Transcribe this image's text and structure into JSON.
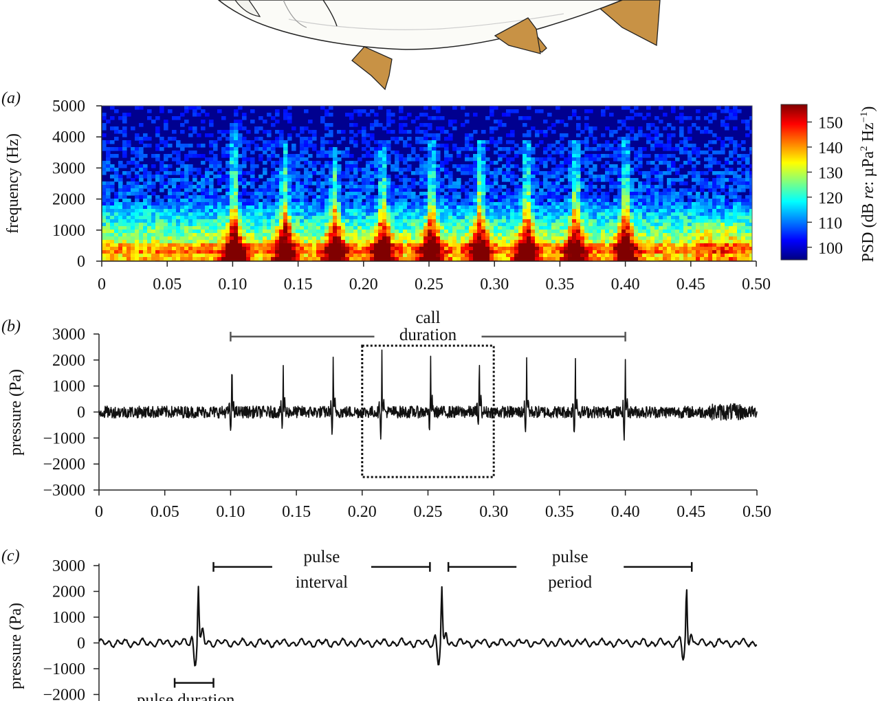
{
  "chart_data": [
    {
      "panel": "a",
      "type": "heatmap",
      "panel_label": "(a)",
      "ylabel": "frequency (Hz)",
      "xlim": [
        0,
        0.5
      ],
      "ylim": [
        0,
        5000
      ],
      "x_ticks": [
        "0",
        "0.05",
        "0.10",
        "0.15",
        "0.20",
        "0.25",
        "0.30",
        "0.35",
        "0.40",
        "0.45",
        "0.50"
      ],
      "y_ticks": [
        "0",
        "1000",
        "2000",
        "3000",
        "4000",
        "5000"
      ],
      "x_tick_values": [
        0,
        0.05,
        0.1,
        0.15,
        0.2,
        0.25,
        0.3,
        0.35,
        0.4,
        0.45,
        0.5
      ],
      "y_tick_values": [
        0,
        1000,
        2000,
        3000,
        4000,
        5000
      ],
      "pulse_times": [
        0.101,
        0.14,
        0.178,
        0.215,
        0.252,
        0.289,
        0.325,
        0.362,
        0.4
      ],
      "pulse_top_freqs": [
        4400,
        3900,
        3700,
        3900,
        3900,
        3900,
        3900,
        3900,
        4000
      ],
      "colorbar": {
        "label_parts": [
          "PSD (dB ",
          "re",
          ": µPa",
          "2",
          " Hz",
          "−1",
          ")"
        ],
        "range": [
          95,
          157
        ],
        "ticks": [
          "100",
          "110",
          "120",
          "130",
          "140",
          "150"
        ],
        "tick_values": [
          100,
          110,
          120,
          130,
          140,
          150
        ],
        "colormap": "jet"
      }
    },
    {
      "panel": "b",
      "type": "line",
      "panel_label": "(b)",
      "ylabel": "pressure (Pa)",
      "xlim": [
        0,
        0.5
      ],
      "ylim": [
        -3000,
        3000
      ],
      "x_ticks": [
        "0",
        "0.05",
        "0.10",
        "0.15",
        "0.20",
        "0.25",
        "0.30",
        "0.35",
        "0.40",
        "0.45",
        "0.50"
      ],
      "y_ticks": [
        "3000",
        "2000",
        "1000",
        "0",
        "−1000",
        "−2000",
        "−3000"
      ],
      "x_tick_values": [
        0,
        0.05,
        0.1,
        0.15,
        0.2,
        0.25,
        0.3,
        0.35,
        0.4,
        0.45,
        0.5
      ],
      "y_tick_values": [
        3000,
        2000,
        1000,
        0,
        -1000,
        -2000,
        -3000
      ],
      "pulses": [
        {
          "t": 0.101,
          "peak": 2000,
          "trough": -850
        },
        {
          "t": 0.14,
          "peak": 1850,
          "trough": -600
        },
        {
          "t": 0.178,
          "peak": 2050,
          "trough": -750
        },
        {
          "t": 0.215,
          "peak": 2250,
          "trough": -850
        },
        {
          "t": 0.252,
          "peak": 2050,
          "trough": -750
        },
        {
          "t": 0.289,
          "peak": 2200,
          "trough": -600
        },
        {
          "t": 0.325,
          "peak": 2150,
          "trough": -650
        },
        {
          "t": 0.362,
          "peak": 2100,
          "trough": -750
        },
        {
          "t": 0.4,
          "peak": 2100,
          "trough": -1000
        }
      ],
      "noise_amplitude": 230,
      "annotation": {
        "line1": "call",
        "line2": "duration",
        "t_start": 0.1,
        "t_end": 0.4,
        "y": 2900
      },
      "zoom_box": {
        "t_start": 0.2,
        "t_end": 0.3,
        "y_top": 2550,
        "y_bottom": -2500
      }
    },
    {
      "panel": "c",
      "type": "line",
      "panel_label": "(c)",
      "ylabel": "pressure (Pa)",
      "xlim": [
        0.2,
        0.3
      ],
      "ylim": [
        -3000,
        3000
      ],
      "y_ticks": [
        "3000",
        "2000",
        "1000",
        "0",
        "−1000",
        "−2000"
      ],
      "y_tick_values": [
        3000,
        2000,
        1000,
        0,
        -1000,
        -2000
      ],
      "pulses": [
        {
          "t": 0.2151,
          "peak": 2250,
          "trough": -850
        },
        {
          "t": 0.2521,
          "peak": 2050,
          "trough": -850
        },
        {
          "t": 0.2893,
          "peak": 2150,
          "trough": -750
        }
      ],
      "noise_amplitude": 140,
      "annotations": {
        "pulse_interval": {
          "line1": "pulse",
          "line2": "interval",
          "t_start": 0.2174,
          "t_end": 0.2503,
          "y": 2950
        },
        "pulse_period": {
          "line1": "pulse",
          "line2": "period",
          "t_start": 0.2531,
          "t_end": 0.2901,
          "y": 2950
        },
        "pulse_duration": {
          "label": "pulse duration",
          "t_start": 0.2115,
          "t_end": 0.2174,
          "y": -1550
        }
      }
    }
  ]
}
